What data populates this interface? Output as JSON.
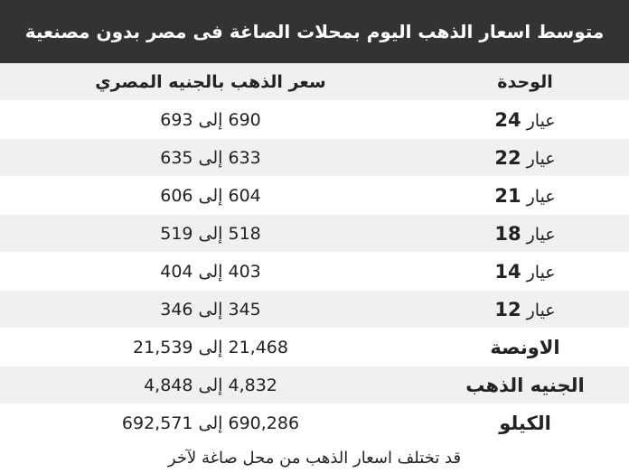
{
  "title": "متوسط اسعار الذهب اليوم بمحلات الصاغة فى مصر بدون مصنعية",
  "table": {
    "headers": {
      "unit": "الوحدة",
      "price": "سعر الذهب بالجنيه المصري"
    },
    "rows": [
      {
        "unit_prefix": "عيار",
        "karat": "24",
        "price": "690 إلى 693"
      },
      {
        "unit_prefix": "عيار",
        "karat": "22",
        "price": "633 إلى 635"
      },
      {
        "unit_prefix": "عيار",
        "karat": "21",
        "price": "604 إلى 606"
      },
      {
        "unit_prefix": "عيار",
        "karat": "18",
        "price": "518 إلى 519"
      },
      {
        "unit_prefix": "عيار",
        "karat": "14",
        "price": "403 إلى 404"
      },
      {
        "unit_prefix": "عيار",
        "karat": "12",
        "price": "345 إلى 346"
      },
      {
        "unit": "الاونصة",
        "price": "21,468 إلى 21,539"
      },
      {
        "unit": "الجنيه الذهب",
        "price": "4,832 إلى 4,848"
      },
      {
        "unit": "الكيلو",
        "price": "690,286 إلى 692,571"
      }
    ]
  },
  "footer_note": "قد تختلف اسعار الذهب من محل صاغة لآخر",
  "colors": {
    "title_bg": "#333333",
    "stripe": "#f0f0f0",
    "text": "#222222"
  }
}
